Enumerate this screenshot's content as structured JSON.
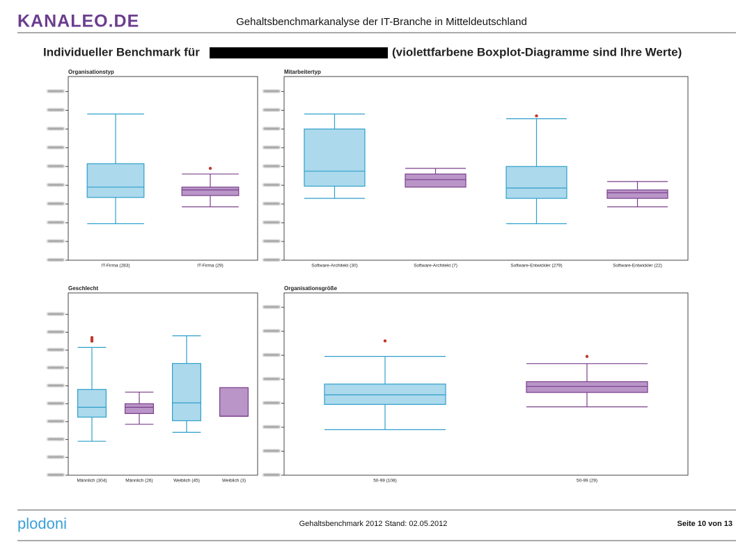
{
  "header": {
    "logo": "kanaleo.de",
    "title": "Gehaltsbenchmarkanalyse der IT-Branche in Mitteldeutschland"
  },
  "heading": {
    "prefix": "Individueller Benchmark für",
    "suffix": "(violettfarbene Boxplot-Diagramme sind Ihre Werte)"
  },
  "chart_data": [
    {
      "type": "boxplot",
      "title": "Organisationstyp",
      "categories": [
        "IT-Firma (283)",
        "IT-Firma (29)"
      ],
      "ylim": [
        0,
        9.8
      ],
      "yticks": [
        0,
        1,
        2,
        3,
        4,
        5,
        6,
        7,
        8,
        9
      ],
      "boxes": [
        {
          "color": "#acd9ec",
          "edge_color": "#2f9fcb",
          "min": 1.95,
          "q1": 3.35,
          "median": 3.9,
          "q3": 5.15,
          "max": 7.8,
          "outliers": []
        },
        {
          "color": "#b995c8",
          "edge_color": "#7a3f8a",
          "min": 2.85,
          "q1": 3.45,
          "median": 3.75,
          "q3": 3.9,
          "max": 4.6,
          "outliers": [
            4.9
          ]
        }
      ]
    },
    {
      "type": "boxplot",
      "title": "Mitarbeitertyp",
      "categories": [
        "Software-Architekt (30)",
        "Software-Architekt (7)",
        "Software-Entwickler (279)",
        "Software-Entwickler (22)"
      ],
      "ylim": [
        0,
        9.8
      ],
      "yticks": [
        0,
        1,
        2,
        3,
        4,
        5,
        6,
        7,
        8,
        9
      ],
      "boxes": [
        {
          "color": "#acd9ec",
          "edge_color": "#2f9fcb",
          "min": 3.3,
          "q1": 3.95,
          "median": 4.75,
          "q3": 7.0,
          "max": 7.8,
          "outliers": []
        },
        {
          "color": "#b995c8",
          "edge_color": "#7a3f8a",
          "min": 3.9,
          "q1": 3.9,
          "median": 4.3,
          "q3": 4.6,
          "max": 4.9,
          "outliers": []
        },
        {
          "color": "#acd9ec",
          "edge_color": "#2f9fcb",
          "min": 1.95,
          "q1": 3.3,
          "median": 3.85,
          "q3": 5.0,
          "max": 7.55,
          "outliers": [
            7.7
          ]
        },
        {
          "color": "#b995c8",
          "edge_color": "#7a3f8a",
          "min": 2.85,
          "q1": 3.3,
          "median": 3.6,
          "q3": 3.75,
          "max": 4.2,
          "outliers": []
        }
      ]
    },
    {
      "type": "boxplot",
      "title": "Geschlecht",
      "categories": [
        "Männlich (304)",
        "Männlich (26)",
        "Weiblich (45)",
        "Weiblich (3)"
      ],
      "ylim": [
        0,
        10.2
      ],
      "yticks": [
        0,
        1,
        2,
        3,
        4,
        5,
        6,
        7,
        8,
        9
      ],
      "boxes": [
        {
          "color": "#acd9ec",
          "edge_color": "#2f9fcb",
          "min": 1.9,
          "q1": 3.25,
          "median": 3.8,
          "q3": 4.8,
          "max": 7.15,
          "outliers": [
            7.5,
            7.6,
            7.7
          ]
        },
        {
          "color": "#b995c8",
          "edge_color": "#7a3f8a",
          "min": 2.85,
          "q1": 3.45,
          "median": 3.8,
          "q3": 4.0,
          "max": 4.65,
          "outliers": []
        },
        {
          "color": "#acd9ec",
          "edge_color": "#2f9fcb",
          "min": 2.4,
          "q1": 3.05,
          "median": 4.05,
          "q3": 6.25,
          "max": 7.8,
          "outliers": []
        },
        {
          "color": "#b995c8",
          "edge_color": "#7a3f8a",
          "min": 3.3,
          "q1": 3.3,
          "median": 3.3,
          "q3": 4.9,
          "max": 4.9,
          "outliers": []
        }
      ]
    },
    {
      "type": "boxplot",
      "title": "Organisationsgröße",
      "categories": [
        "50-99 (108)",
        "50-99 (29)"
      ],
      "ylim": [
        0,
        7.6
      ],
      "yticks": [
        0,
        1,
        2,
        3,
        4,
        5,
        6,
        7
      ],
      "boxes": [
        {
          "color": "#acd9ec",
          "edge_color": "#2f9fcb",
          "min": 1.9,
          "q1": 2.95,
          "median": 3.35,
          "q3": 3.8,
          "max": 4.95,
          "outliers": [
            5.6
          ]
        },
        {
          "color": "#b995c8",
          "edge_color": "#7a3f8a",
          "min": 2.85,
          "q1": 3.45,
          "median": 3.7,
          "q3": 3.9,
          "max": 4.65,
          "outliers": [
            4.95
          ]
        }
      ]
    }
  ],
  "footer": {
    "logo": "plodoni",
    "center": "Gehaltsbenchmark 2012 Stand: 02.05.2012",
    "page": "Seite 10 von 13"
  }
}
